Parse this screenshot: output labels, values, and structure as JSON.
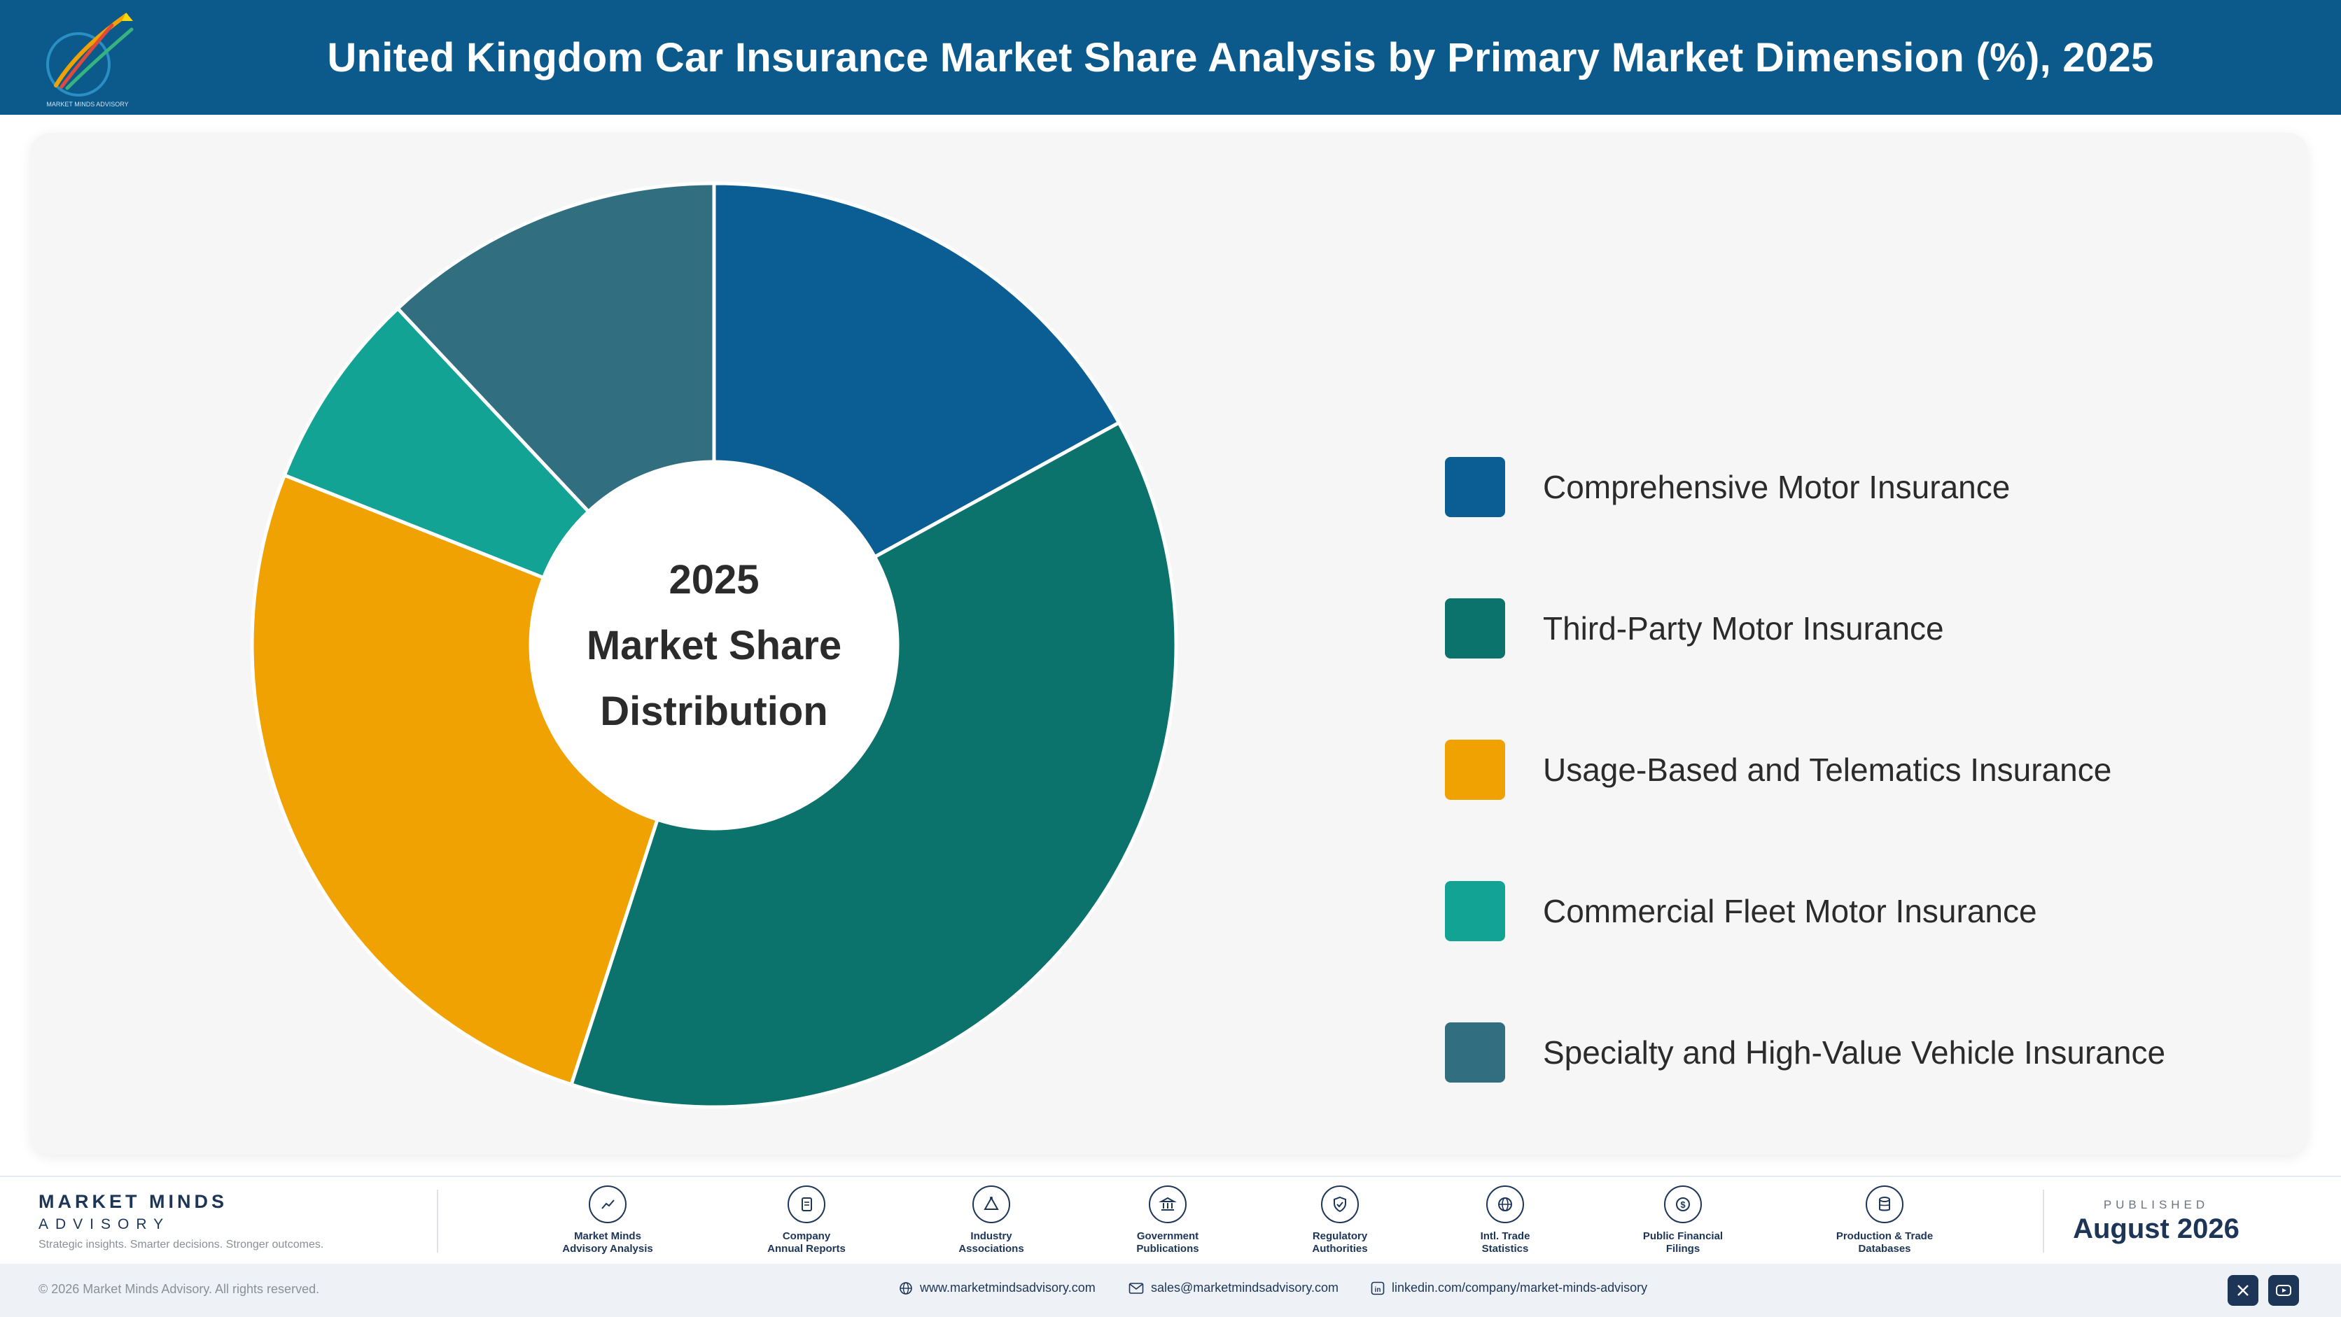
{
  "header": {
    "title": "United Kingdom Car Insurance Market Share Analysis by Primary Market Dimension (%), 2025"
  },
  "chart_data": {
    "type": "donut",
    "center_label": [
      "2025",
      "Market Share",
      "Distribution"
    ],
    "categories": [
      "Comprehensive Motor Insurance",
      "Third-Party Motor Insurance",
      "Usage-Based and Telematics Insurance",
      "Commercial Fleet Motor Insurance",
      "Specialty and High-Value Vehicle Insurance"
    ],
    "values": [
      17,
      38,
      26,
      7,
      12
    ],
    "unit": "%",
    "colors": [
      "#0b5e93",
      "#0b726c",
      "#f0a202",
      "#13a394",
      "#306e80"
    ],
    "legend_position": "right"
  },
  "footer": {
    "brand_name": "MARKET MINDS",
    "brand_sub": "ADVISORY",
    "brand_tagline": "Strategic insights. Smarter decisions. Stronger outcomes.",
    "sources": [
      {
        "label": "Market Minds\nAdvisory Analysis",
        "icon": "trend-line-icon"
      },
      {
        "label": "Company\nAnnual Reports",
        "icon": "document-icon"
      },
      {
        "label": "Industry\nAssociations",
        "icon": "network-icon"
      },
      {
        "label": "Government\nPublications",
        "icon": "government-building-icon"
      },
      {
        "label": "Regulatory\nAuthorities",
        "icon": "shield-check-icon"
      },
      {
        "label": "Intl. Trade\nStatistics",
        "icon": "globe-icon"
      },
      {
        "label": "Public Financial\nFilings",
        "icon": "currency-icon"
      },
      {
        "label": "Production & Trade\nDatabases",
        "icon": "database-icon"
      }
    ],
    "published_label": "PUBLISHED",
    "published_date": "August 2026",
    "copyright": "© 2026 Market Minds Advisory. All rights reserved.",
    "website": "www.marketmindsadvisory.com",
    "email": "sales@marketmindsadvisory.com",
    "linkedin": "linkedin.com/company/market-minds-advisory"
  }
}
